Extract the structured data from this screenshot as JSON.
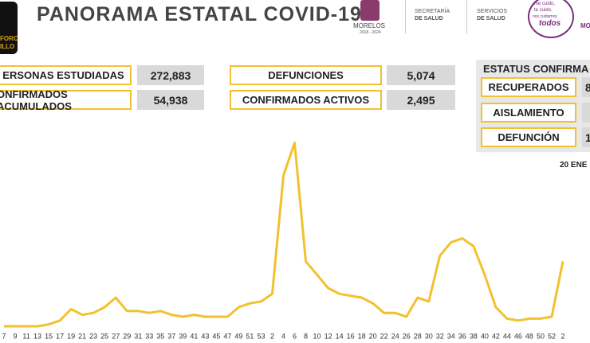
{
  "header": {
    "logo_text": [
      "FORO",
      "ILLO"
    ],
    "title": "PANORAMA ESTATAL COVID-19",
    "partners": [
      "MORELOS",
      "2018 - 2024",
      "SECRETARÍA",
      "DE SALUD",
      "SERVICIOS",
      "DE SALUD",
      "me cuido,",
      "te cuido,",
      "nos cuidamos",
      "todos",
      "MO"
    ]
  },
  "stats": [
    {
      "label": "ERSONAS ESTUDIADAS",
      "value": "272,883"
    },
    {
      "label": "ONFIRMADOS ACUMULADOS",
      "value": "54,938"
    },
    {
      "label": "DEFUNCIONES",
      "value": "5,074"
    },
    {
      "label": "CONFIRMADOS ACTIVOS",
      "value": "2,495"
    }
  ],
  "status": {
    "title": "ESTATUS CONFIRMA",
    "items": [
      {
        "label": "RECUPERADOS",
        "value": "8"
      },
      {
        "label": "AISLAMIENTO"
      },
      {
        "label": "DEFUNCIÓN",
        "value": "1"
      }
    ]
  },
  "date": "20 ENE",
  "chart_data": {
    "type": "line",
    "categories": [
      "7",
      "9",
      "11",
      "13",
      "15",
      "17",
      "19",
      "21",
      "23",
      "25",
      "27",
      "29",
      "31",
      "33",
      "35",
      "37",
      "39",
      "41",
      "43",
      "45",
      "47",
      "49",
      "51",
      "53",
      "2",
      "4",
      "6",
      "8",
      "10",
      "12",
      "14",
      "16",
      "18",
      "20",
      "22",
      "24",
      "26",
      "28",
      "30",
      "32",
      "34",
      "36",
      "38",
      "40",
      "42",
      "44",
      "46",
      "48",
      "50",
      "52",
      "2"
    ],
    "values": [
      0,
      0,
      0,
      0,
      1,
      3,
      9,
      6,
      7,
      10,
      15,
      8,
      8,
      7,
      8,
      6,
      5,
      6,
      5,
      5,
      5,
      10,
      12,
      13,
      17,
      79,
      96,
      34,
      27,
      20,
      17,
      16,
      15,
      12,
      7,
      7,
      5,
      15,
      13,
      37,
      44,
      46,
      42,
      27,
      10,
      4,
      3,
      4,
      4,
      5,
      34
    ],
    "color": "#f2c12e",
    "ylim": [
      0,
      100
    ]
  }
}
